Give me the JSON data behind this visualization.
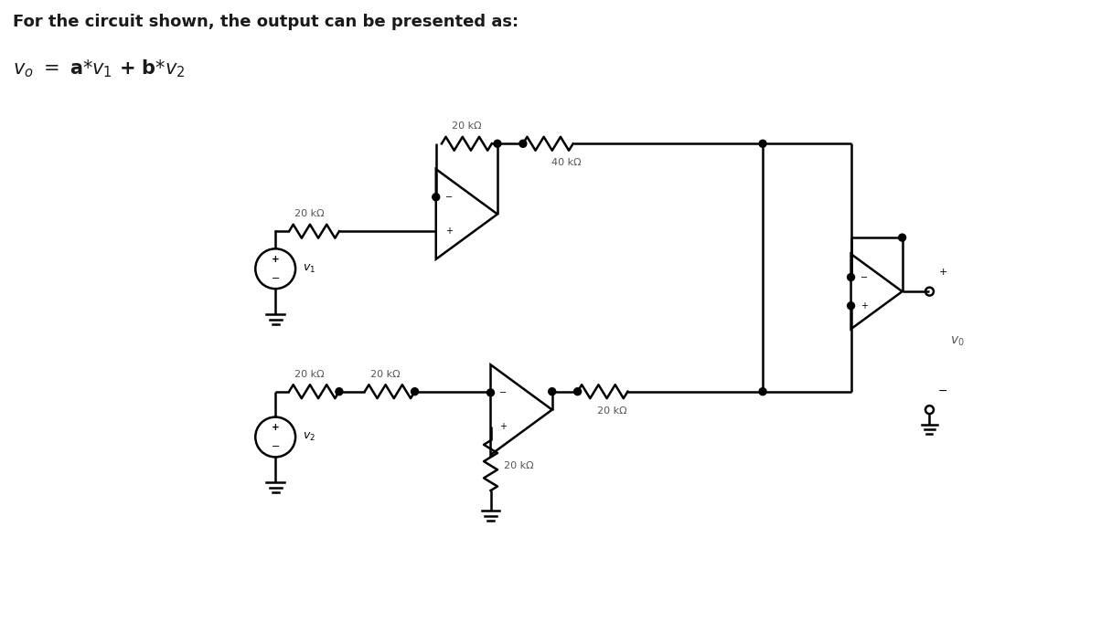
{
  "title_line1": "For the circuit shown, the output can be presented as:",
  "bg_color": "#ffffff",
  "line_color": "#000000",
  "lw": 1.8,
  "resistor_labels": {
    "r1": "20 kΩ",
    "r2": "20 kΩ",
    "r3": "40 kΩ",
    "r4": "20 kΩ",
    "r5": "20 kΩ",
    "r6": "20 kΩ",
    "r7": "20 kΩ"
  },
  "label_fontsize": 8,
  "title_fontsize": 13,
  "formula_fontsize": 15
}
